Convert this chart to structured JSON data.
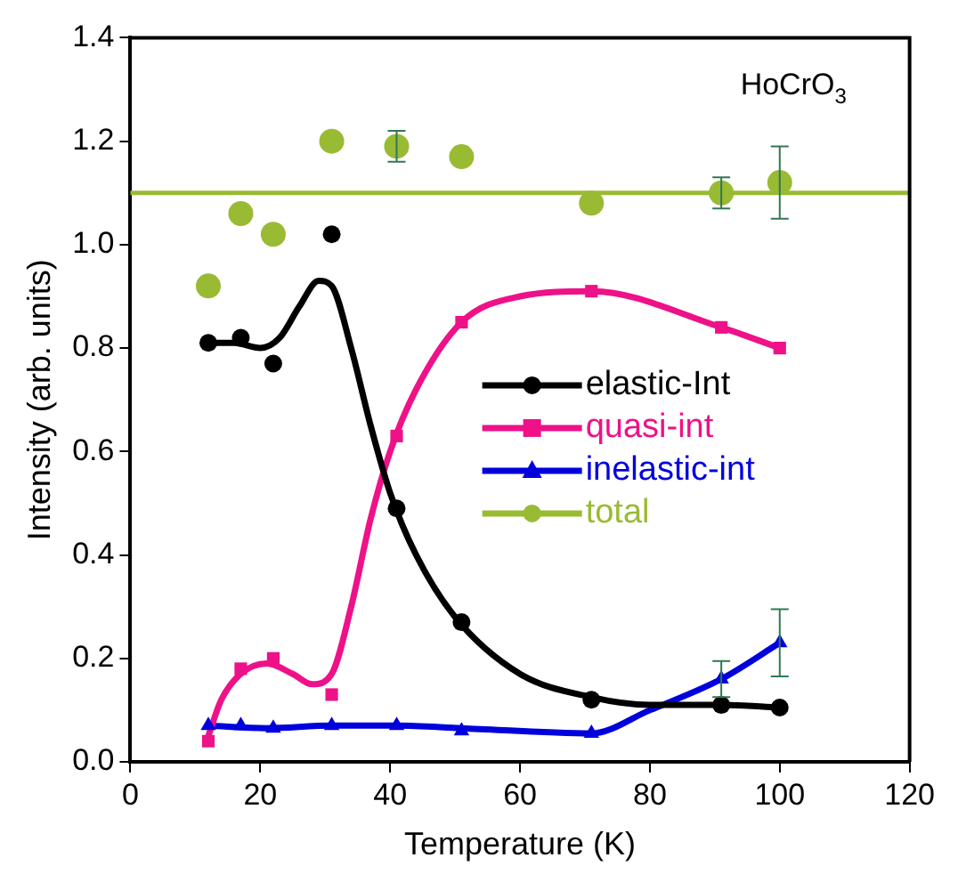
{
  "chart_data": {
    "type": "scatter",
    "xlabel": "Temperature (K)",
    "ylabel": "Intensity (arb. units)",
    "annotations": [
      "HoCrO$_{3}$"
    ],
    "xlim": [
      0,
      120
    ],
    "xticks": [
      0,
      20,
      40,
      60,
      80,
      100,
      120
    ],
    "ylim": [
      0,
      1.4
    ],
    "yticks": [
      {
        "value": 0,
        "label": "0.0"
      },
      {
        "value": 0.2,
        "label": "0.2"
      },
      {
        "value": 0.4,
        "label": "0.4"
      },
      {
        "value": 0.6,
        "label": "0.6"
      },
      {
        "value": 0.8,
        "label": "0.8"
      },
      {
        "value": 1.0,
        "label": "1.0"
      },
      {
        "value": 1.2,
        "label": "1.2"
      },
      {
        "value": 1.4,
        "label": "1.4"
      }
    ],
    "grid": false,
    "legend": "right",
    "ref_lines": [
      {
        "axis": "y",
        "value": 1.1,
        "color": "#99bb33"
      }
    ],
    "series": [
      {
        "type": "line",
        "color": "#000000",
        "marker": "none",
        "x": [
          12,
          16,
          20,
          23,
          26,
          29,
          31,
          34,
          37,
          40,
          44,
          50,
          60,
          71,
          80,
          91,
          100
        ],
        "values": [
          0.81,
          0.81,
          0.8,
          0.82,
          0.88,
          0.93,
          0.92,
          0.8,
          0.65,
          0.52,
          0.4,
          0.28,
          0.17,
          0.125,
          0.11,
          0.11,
          0.105
        ]
      },
      {
        "type": "line",
        "color": "#ee1188",
        "marker": "none",
        "x": [
          12,
          14,
          17,
          21,
          25,
          28,
          31,
          34,
          37,
          40,
          44,
          51,
          60,
          71,
          91,
          100
        ],
        "values": [
          0.05,
          0.12,
          0.17,
          0.19,
          0.17,
          0.15,
          0.17,
          0.3,
          0.47,
          0.6,
          0.72,
          0.85,
          0.9,
          0.91,
          0.84,
          0.8
        ]
      },
      {
        "type": "line",
        "color": "#0000dd",
        "marker": "none",
        "x": [
          12,
          21,
          31,
          41,
          51,
          71,
          80,
          91,
          100
        ],
        "values": [
          0.07,
          0.065,
          0.07,
          0.07,
          0.065,
          0.055,
          0.1,
          0.16,
          0.23
        ]
      },
      {
        "type": "scatter",
        "name": "elastic-Int",
        "color": "#000000",
        "marker": "circle",
        "x": [
          12,
          17,
          22,
          31,
          41,
          51,
          71,
          91,
          100
        ],
        "values": [
          0.81,
          0.82,
          0.77,
          1.02,
          0.49,
          0.27,
          0.12,
          0.11,
          0.105
        ]
      },
      {
        "type": "scatter",
        "name": "quasi-int",
        "color": "#ee1188",
        "marker": "square",
        "x": [
          12,
          17,
          22,
          31,
          41,
          51,
          71,
          91,
          100
        ],
        "values": [
          0.04,
          0.18,
          0.2,
          0.13,
          0.63,
          0.85,
          0.91,
          0.84,
          0.8
        ]
      },
      {
        "type": "scatter",
        "name": "inelastic-int",
        "color": "#0000dd",
        "marker": "triangle",
        "x": [
          12,
          17,
          22,
          31,
          41,
          51,
          71,
          91,
          100
        ],
        "values": [
          0.07,
          0.07,
          0.065,
          0.07,
          0.07,
          0.06,
          0.055,
          0.16,
          0.23
        ],
        "errors": [
          null,
          null,
          null,
          null,
          null,
          null,
          null,
          0.035,
          0.065
        ]
      },
      {
        "type": "scatter",
        "name": "total",
        "color": "#99bb33",
        "marker": "circle",
        "x": [
          12,
          17,
          22,
          31,
          41,
          51,
          71,
          91,
          100
        ],
        "values": [
          0.92,
          1.06,
          1.02,
          1.2,
          1.19,
          1.17,
          1.08,
          1.1,
          1.12
        ],
        "errors": [
          null,
          null,
          null,
          null,
          0.03,
          null,
          null,
          0.03,
          0.07
        ]
      }
    ]
  }
}
